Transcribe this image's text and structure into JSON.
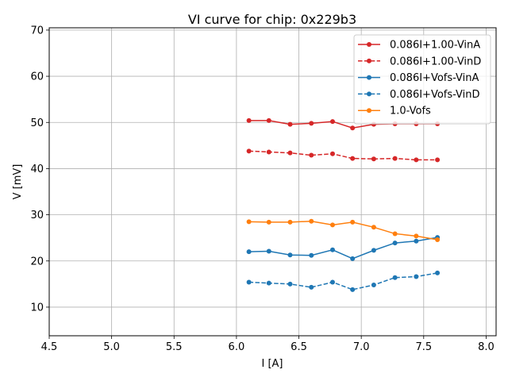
{
  "chart_data": {
    "type": "line",
    "title": "VI curve for chip: 0x229b3",
    "xlabel": "I [A]",
    "ylabel": "V [mV]",
    "xlim": [
      4.5,
      8.08
    ],
    "ylim": [
      3.8,
      70.5
    ],
    "xticks": [
      4.5,
      5.0,
      5.5,
      6.0,
      6.5,
      7.0,
      7.5,
      8.0
    ],
    "xtick_labels": [
      "4.5",
      "5.0",
      "5.5",
      "6.0",
      "6.5",
      "7.0",
      "7.5",
      "8.0"
    ],
    "yticks": [
      10,
      20,
      30,
      40,
      50,
      60,
      70
    ],
    "ytick_labels": [
      "10",
      "20",
      "30",
      "40",
      "50",
      "60",
      "70"
    ],
    "grid": true,
    "legend_position": "top-right",
    "x": [
      6.1,
      6.26,
      6.43,
      6.6,
      6.77,
      6.93,
      7.1,
      7.27,
      7.44,
      7.61
    ],
    "series": [
      {
        "name": "0.086I+1.00-VinA",
        "color": "#d62728",
        "linestyle": "solid",
        "values": [
          50.4,
          50.4,
          49.6,
          49.8,
          50.2,
          48.8,
          49.6,
          49.7,
          49.7,
          49.7
        ]
      },
      {
        "name": "0.086I+1.00-VinD",
        "color": "#d62728",
        "linestyle": "dashed",
        "values": [
          43.8,
          43.6,
          43.4,
          42.9,
          43.2,
          42.2,
          42.1,
          42.2,
          41.9,
          41.9
        ]
      },
      {
        "name": "0.086I+Vofs-VinA",
        "color": "#1f77b4",
        "linestyle": "solid",
        "values": [
          22.0,
          22.1,
          21.3,
          21.2,
          22.4,
          20.5,
          22.3,
          23.9,
          24.3,
          25.1
        ]
      },
      {
        "name": "0.086I+Vofs-VinD",
        "color": "#1f77b4",
        "linestyle": "dashed",
        "values": [
          15.4,
          15.2,
          15.0,
          14.3,
          15.4,
          13.8,
          14.8,
          16.4,
          16.6,
          17.4
        ]
      },
      {
        "name": "1.0-Vofs",
        "color": "#ff7f0e",
        "linestyle": "solid",
        "values": [
          28.5,
          28.4,
          28.4,
          28.6,
          27.8,
          28.4,
          27.3,
          25.9,
          25.4,
          24.6
        ]
      }
    ]
  }
}
